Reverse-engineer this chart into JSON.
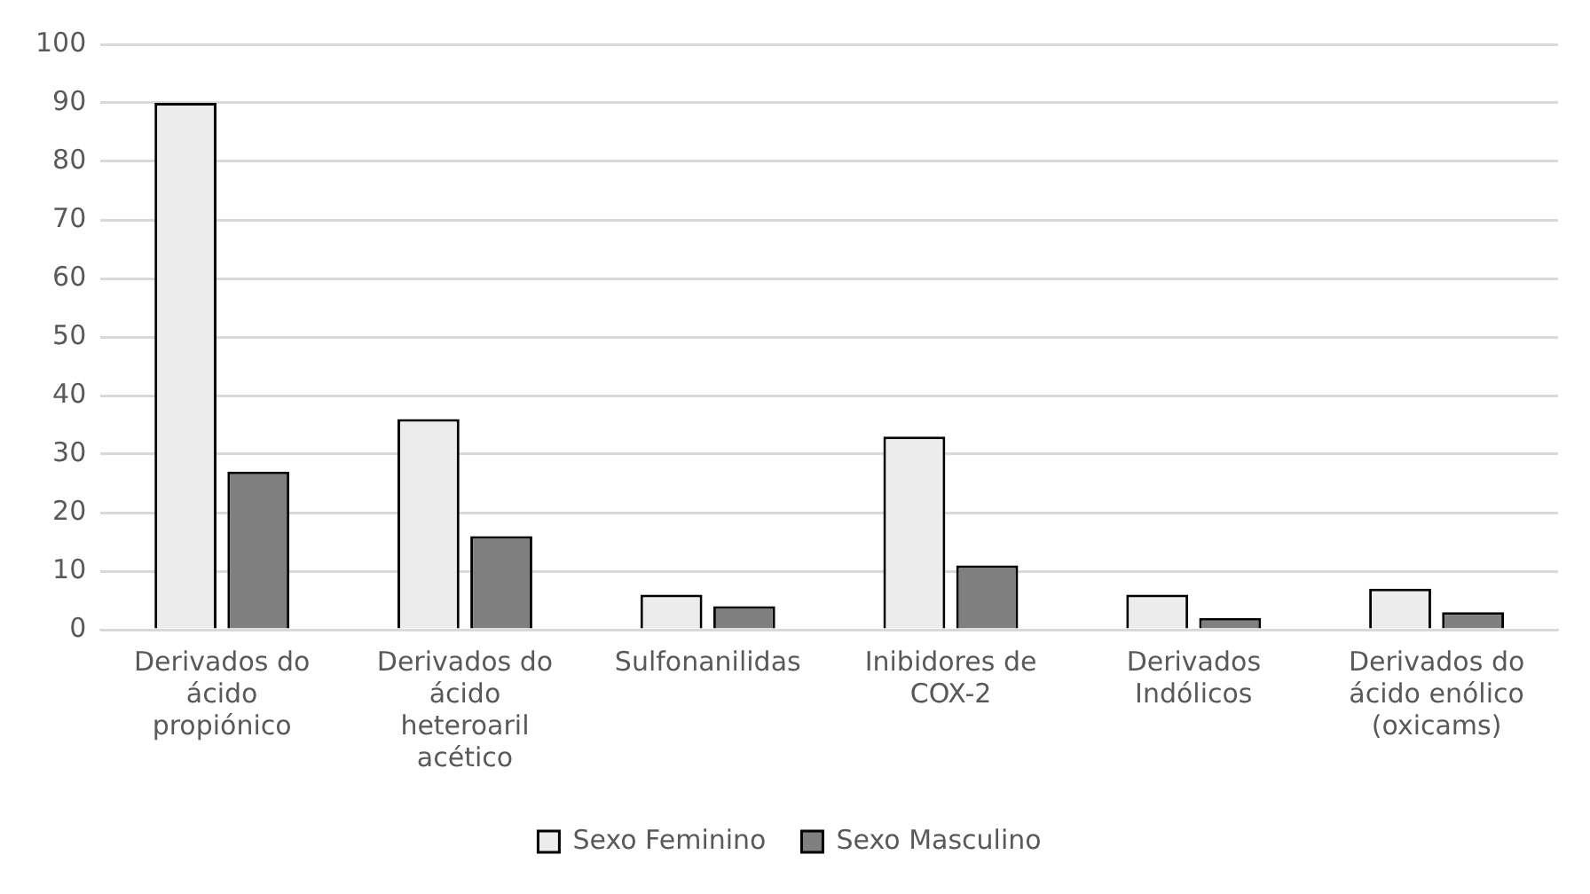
{
  "chart_data": {
    "type": "bar",
    "categories": [
      "Derivados do ácido propiónico",
      "Derivados do ácido heteroaril acético",
      "Sulfonanilidas",
      "Inibidores de COX-2",
      "Derivados Indólicos",
      "Derivados do ácido enólico (oxicams)"
    ],
    "series": [
      {
        "name": "Sexo Feminino",
        "color": "#ececec",
        "values": [
          90,
          36,
          6,
          33,
          6,
          7
        ]
      },
      {
        "name": "Sexo Masculino",
        "color": "#7f7f7f",
        "values": [
          27,
          16,
          4,
          11,
          2,
          3
        ]
      }
    ],
    "ylim": [
      0,
      100
    ],
    "yticks": [
      0,
      10,
      20,
      30,
      40,
      50,
      60,
      70,
      80,
      90,
      100
    ],
    "grid": "y",
    "legend": "bottom"
  }
}
